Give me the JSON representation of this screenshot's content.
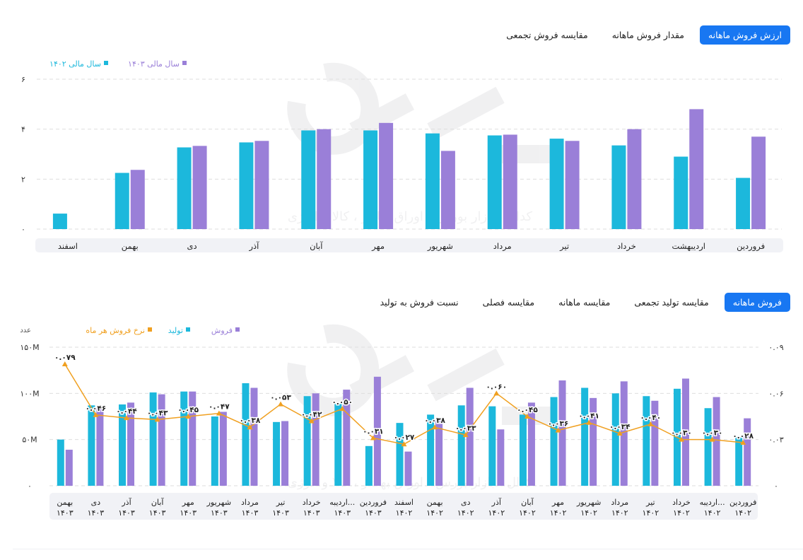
{
  "top_tabs": [
    {
      "label": "ارزش فروش ماهانه",
      "active": true
    },
    {
      "label": "مقدار فروش ماهانه",
      "active": false
    },
    {
      "label": "مقایسه فروش تجمعی",
      "active": false
    }
  ],
  "bottom_tabs": [
    {
      "label": "فروش ماهانه",
      "active": true
    },
    {
      "label": "مقایسه تولید تجمعی",
      "active": false
    },
    {
      "label": "مقایسه ماهانه",
      "active": false
    },
    {
      "label": "مقایسه فصلی",
      "active": false
    },
    {
      "label": "نسبت فروش به تولید",
      "active": false
    }
  ],
  "watermark_text": "کدال ، بازار بورس ، اوراق بهادار ، کالا و انرژی",
  "colors": {
    "cyan": "#1cb8dc",
    "purple": "#9a7fd8",
    "orange": "#f0a020",
    "active_tab": "#1877f2"
  },
  "chart_data": [
    {
      "type": "bar",
      "legend": [
        {
          "name": "سال مالی ۱۴۰۳",
          "color": "#9a7fd8"
        },
        {
          "name": "سال مالی ۱۴۰۲",
          "color": "#1cb8dc"
        }
      ],
      "ylim": [
        0,
        6
      ],
      "yticks": [
        "۰",
        "۲",
        "۴",
        "۶"
      ],
      "categories": [
        "فروردین",
        "اردیبهشت",
        "خرداد",
        "تیر",
        "مرداد",
        "شهریور",
        "مهر",
        "آبان",
        "آذر",
        "دی",
        "بهمن",
        "اسفند"
      ],
      "series": [
        {
          "name": "سال مالی ۱۴۰۲",
          "values": [
            2.05,
            2.9,
            3.35,
            3.62,
            3.75,
            3.83,
            3.95,
            3.95,
            3.47,
            3.27,
            2.25,
            0.62
          ]
        },
        {
          "name": "سال مالی ۱۴۰۳",
          "values": [
            3.7,
            4.8,
            4.0,
            3.53,
            3.78,
            3.13,
            4.25,
            4.0,
            3.53,
            3.33,
            2.37,
            null
          ]
        }
      ]
    },
    {
      "type": "bar",
      "legend": [
        {
          "name": "فروش",
          "color": "#9a7fd8"
        },
        {
          "name": "تولید",
          "color": "#1cb8dc"
        },
        {
          "name": "نرخ فروش هر ماه",
          "color": "#f0a020"
        }
      ],
      "ylabel": "عدد",
      "ylim": [
        0,
        150
      ],
      "yticks": [
        "۰",
        "۵۰M",
        "۱۰۰M",
        "۱۵۰M"
      ],
      "y2lim": [
        0,
        0.09
      ],
      "y2ticks": [
        "۰",
        "۰.۰۳",
        "۰.۰۶",
        "۰.۰۹"
      ],
      "categories": [
        [
          "فروردین",
          "۱۴۰۲"
        ],
        [
          "اردیبه...",
          "۱۴۰۲"
        ],
        [
          "خرداد",
          "۱۴۰۲"
        ],
        [
          "تیر",
          "۱۴۰۲"
        ],
        [
          "مرداد",
          "۱۴۰۲"
        ],
        [
          "شهریور",
          "۱۴۰۲"
        ],
        [
          "مهر",
          "۱۴۰۲"
        ],
        [
          "آبان",
          "۱۴۰۲"
        ],
        [
          "آذر",
          "۱۴۰۲"
        ],
        [
          "دی",
          "۱۴۰۲"
        ],
        [
          "بهمن",
          "۱۴۰۲"
        ],
        [
          "اسفند",
          "۱۴۰۲"
        ],
        [
          "فروردین",
          "۱۴۰۳"
        ],
        [
          "اردیبه...",
          "۱۴۰۳"
        ],
        [
          "خرداد",
          "۱۴۰۳"
        ],
        [
          "تیر",
          "۱۴۰۳"
        ],
        [
          "مرداد",
          "۱۴۰۳"
        ],
        [
          "شهریور",
          "۱۴۰۳"
        ],
        [
          "مهر",
          "۱۴۰۳"
        ],
        [
          "آبان",
          "۱۴۰۳"
        ],
        [
          "آذر",
          "۱۴۰۳"
        ],
        [
          "دی",
          "۱۴۰۳"
        ],
        [
          "بهمن",
          "۱۴۰۳"
        ]
      ],
      "series": [
        {
          "name": "تولید",
          "values": [
            53,
            84,
            105,
            97,
            100,
            106,
            96,
            77,
            86,
            87,
            77,
            68,
            43,
            89,
            97,
            69,
            111,
            75,
            102,
            101,
            88,
            87,
            50
          ]
        },
        {
          "name": "فروش",
          "values": [
            73,
            96,
            116,
            92,
            113,
            95,
            114,
            90,
            61,
            106,
            71,
            37,
            118,
            104,
            100,
            70,
            106,
            80,
            102,
            99,
            90,
            84,
            39
          ]
        },
        {
          "name": "نرخ فروش هر ماه",
          "values": [
            0.028,
            0.03,
            0.03,
            0.04,
            0.034,
            0.041,
            0.036,
            0.045,
            0.06,
            0.033,
            0.038,
            0.027,
            0.031,
            0.05,
            0.042,
            0.053,
            0.038,
            0.047,
            0.045,
            0.043,
            0.044,
            0.046,
            0.079
          ]
        }
      ],
      "rate_labels": [
        "۰.۰۲۸",
        "۰.۰۳۰",
        "۰.۰۳۰",
        "۰.۰۴۰",
        "۰.۰۳۴",
        "۰.۰۴۱",
        "۰.۰۳۶",
        "۰.۰۴۵",
        "۰.۰۶۰",
        "۰.۰۳۳",
        "۰.۰۳۸",
        "۰.۰۲۷",
        "۰.۰۳۱",
        "۰.۰۵۰",
        "۰.۰۴۲",
        "۰.۰۵۳",
        "۰.۰۳۸",
        "۰.۰۴۷",
        "۰.۰۴۵",
        "۰.۰۴۳",
        "۰.۰۴۴",
        "۰.۰۴۶",
        "۰.۰۷۹"
      ]
    }
  ]
}
